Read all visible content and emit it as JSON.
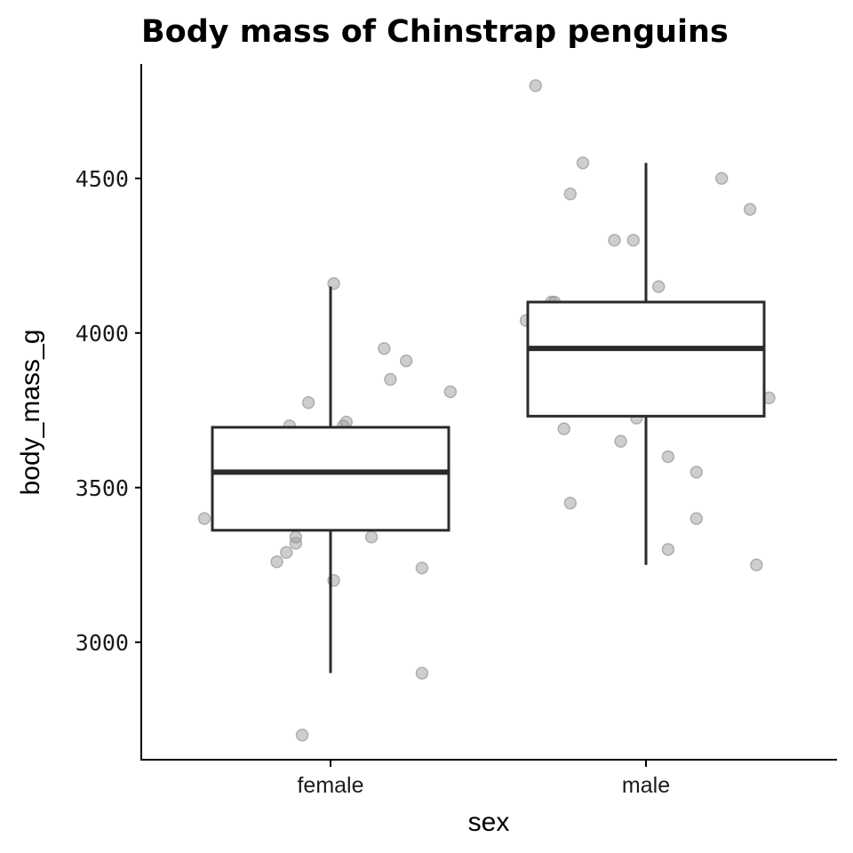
{
  "chart_data": {
    "type": "boxplot",
    "title": "Body mass of Chinstrap penguins",
    "xlabel": "sex",
    "ylabel": "body_mass_g",
    "categories": [
      "female",
      "male"
    ],
    "ylim": [
      2620,
      4870
    ],
    "yticks": [
      "3000",
      "3500",
      "4000",
      "4500"
    ],
    "grid": false,
    "colors": {
      "box_stroke": "#2b2b2b",
      "point_fill": "#9e9e9e",
      "axis": "#000000"
    },
    "boxes": [
      {
        "category": "female",
        "whisker_low": 2900,
        "q1": 3362,
        "median": 3550,
        "q3": 3695,
        "whisker_high": 4150
      },
      {
        "category": "male",
        "whisker_low": 3250,
        "q1": 3731,
        "median": 3950,
        "q3": 4100,
        "whisker_high": 4550
      }
    ],
    "points": [
      {
        "category": "female",
        "jitter": -0.4,
        "value": 3400
      },
      {
        "category": "female",
        "jitter": -0.17,
        "value": 3260
      },
      {
        "category": "female",
        "jitter": -0.14,
        "value": 3290
      },
      {
        "category": "female",
        "jitter": -0.13,
        "value": 3700
      },
      {
        "category": "female",
        "jitter": -0.11,
        "value": 3320
      },
      {
        "category": "female",
        "jitter": -0.11,
        "value": 3340
      },
      {
        "category": "female",
        "jitter": -0.09,
        "value": 2700
      },
      {
        "category": "female",
        "jitter": -0.07,
        "value": 3775
      },
      {
        "category": "female",
        "jitter": 0.01,
        "value": 3200
      },
      {
        "category": "female",
        "jitter": 0.01,
        "value": 4160
      },
      {
        "category": "female",
        "jitter": 0.04,
        "value": 3700
      },
      {
        "category": "female",
        "jitter": 0.05,
        "value": 3712
      },
      {
        "category": "female",
        "jitter": 0.13,
        "value": 3340
      },
      {
        "category": "female",
        "jitter": 0.17,
        "value": 3950
      },
      {
        "category": "female",
        "jitter": 0.19,
        "value": 3850
      },
      {
        "category": "female",
        "jitter": 0.24,
        "value": 3910
      },
      {
        "category": "female",
        "jitter": 0.29,
        "value": 3240
      },
      {
        "category": "female",
        "jitter": 0.29,
        "value": 2900
      },
      {
        "category": "female",
        "jitter": 0.38,
        "value": 3810
      },
      {
        "category": "male",
        "jitter": -0.38,
        "value": 4040
      },
      {
        "category": "male",
        "jitter": -0.35,
        "value": 4800
      },
      {
        "category": "male",
        "jitter": -0.3,
        "value": 4100
      },
      {
        "category": "male",
        "jitter": -0.29,
        "value": 4100
      },
      {
        "category": "male",
        "jitter": -0.26,
        "value": 3690
      },
      {
        "category": "male",
        "jitter": -0.24,
        "value": 3450
      },
      {
        "category": "male",
        "jitter": -0.24,
        "value": 4450
      },
      {
        "category": "male",
        "jitter": -0.2,
        "value": 4550
      },
      {
        "category": "male",
        "jitter": -0.1,
        "value": 4300
      },
      {
        "category": "male",
        "jitter": -0.08,
        "value": 3650
      },
      {
        "category": "male",
        "jitter": -0.04,
        "value": 4300
      },
      {
        "category": "male",
        "jitter": -0.03,
        "value": 3725
      },
      {
        "category": "male",
        "jitter": 0.04,
        "value": 4150
      },
      {
        "category": "male",
        "jitter": 0.07,
        "value": 3600
      },
      {
        "category": "male",
        "jitter": 0.07,
        "value": 3300
      },
      {
        "category": "male",
        "jitter": 0.16,
        "value": 3400
      },
      {
        "category": "male",
        "jitter": 0.16,
        "value": 3550
      },
      {
        "category": "male",
        "jitter": 0.24,
        "value": 4500
      },
      {
        "category": "male",
        "jitter": 0.33,
        "value": 4400
      },
      {
        "category": "male",
        "jitter": 0.35,
        "value": 3250
      },
      {
        "category": "male",
        "jitter": 0.39,
        "value": 3790
      }
    ]
  }
}
